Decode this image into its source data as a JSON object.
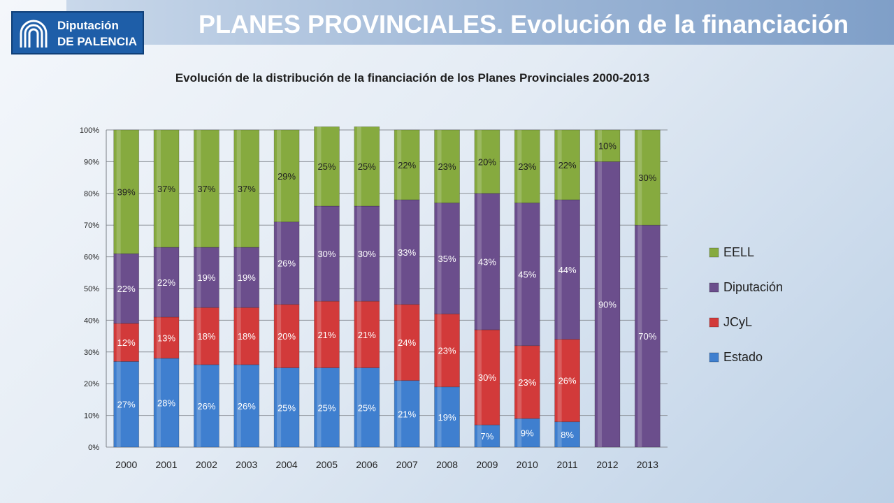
{
  "header": {
    "title": "PLANES PROVINCIALES. Evolución de la financiación",
    "logo_line1": "Diputación",
    "logo_line2": "DE PALENCIA"
  },
  "colors": {
    "Estado": "#3f7fcf",
    "JCyL": "#d23a3a",
    "Diputación": "#6b4e8c",
    "EELL": "#86aa3f",
    "label_text_light": "#ffffff",
    "label_text_dark": "#1f1f1f"
  },
  "chart_data": {
    "type": "bar",
    "stacked": true,
    "percent_stacked": true,
    "title": "Evolución de la distribución de la financiación de los Planes Provinciales 2000-2013",
    "categories": [
      "2000",
      "2001",
      "2002",
      "2003",
      "2004",
      "2005",
      "2006",
      "2007",
      "2008",
      "2009",
      "2010",
      "2011",
      "2012",
      "2013"
    ],
    "series": [
      {
        "name": "Estado",
        "values": [
          27,
          28,
          26,
          26,
          25,
          25,
          25,
          21,
          19,
          7,
          9,
          8,
          0,
          0
        ],
        "labels": [
          "27%",
          "28%",
          "26%",
          "26%",
          "25%",
          "25%",
          "25%",
          "21%",
          "19%",
          "7%",
          "9%",
          "8%",
          "",
          ""
        ]
      },
      {
        "name": "JCyL",
        "values": [
          12,
          13,
          18,
          18,
          20,
          21,
          21,
          24,
          23,
          30,
          23,
          26,
          0,
          0
        ],
        "labels": [
          "12%",
          "13%",
          "18%",
          "18%",
          "20%",
          "21%",
          "21%",
          "24%",
          "23%",
          "30%",
          "23%",
          "26%",
          "",
          ""
        ]
      },
      {
        "name": "Diputación",
        "values": [
          22,
          22,
          19,
          19,
          26,
          30,
          30,
          33,
          35,
          43,
          45,
          44,
          90,
          70
        ],
        "labels": [
          "22%",
          "22%",
          "19%",
          "19%",
          "26%",
          "30%",
          "30%",
          "33%",
          "35%",
          "43%",
          "45%",
          "44%",
          "90%",
          "70%"
        ]
      },
      {
        "name": "EELL",
        "values": [
          39,
          37,
          37,
          37,
          29,
          25,
          25,
          22,
          23,
          20,
          23,
          22,
          10,
          30
        ],
        "labels": [
          "39%",
          "37%",
          "37%",
          "37%",
          "29%",
          "25%",
          "25%",
          "22%",
          "23%",
          "20%",
          "23%",
          "22%",
          "10%",
          "30%"
        ]
      }
    ],
    "y_axis": {
      "min": 0,
      "max": 100,
      "ticks": [
        "0%",
        "10%",
        "20%",
        "30%",
        "40%",
        "50%",
        "60%",
        "70%",
        "80%",
        "90%",
        "100%"
      ]
    },
    "grid": true,
    "legend": {
      "position": "right",
      "order": [
        "EELL",
        "Diputación",
        "JCyL",
        "Estado"
      ]
    }
  }
}
